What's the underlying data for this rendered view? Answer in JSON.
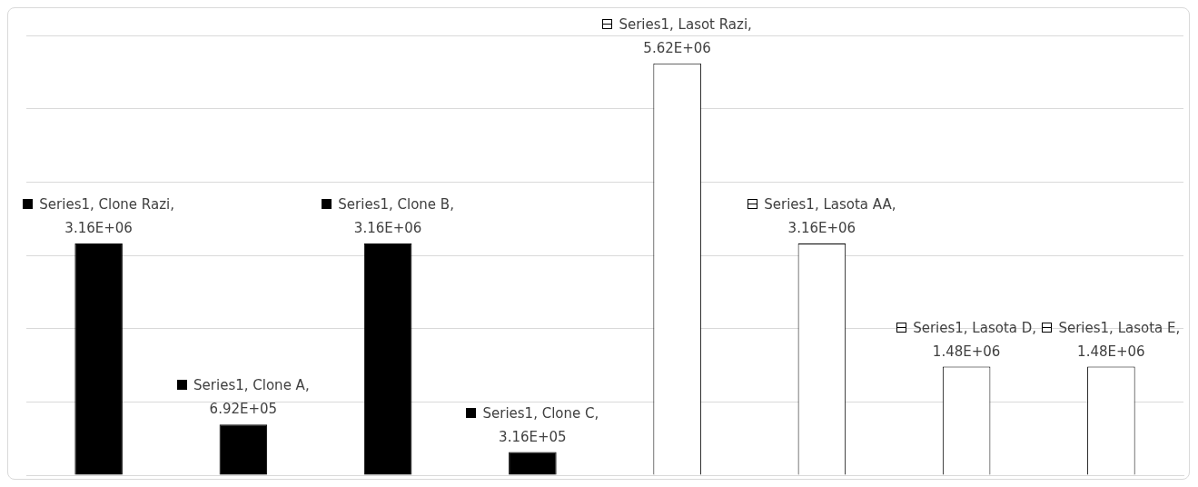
{
  "chart_data": {
    "type": "bar",
    "categories": [
      null,
      null,
      null,
      null,
      null,
      null,
      null,
      null
    ],
    "values": [
      3160000,
      692000,
      3160000,
      316000,
      5620000,
      3160000,
      1480000,
      1480000
    ],
    "colors": [
      "#000000",
      "#000000",
      "#000000",
      "#000000",
      "#ffffff",
      "#ffffff",
      "#ffffff",
      "#ffffff"
    ],
    "value_labels": [
      "3.16E+06",
      "6.92E+05",
      "3.16E+06",
      "3.16E+05",
      "5.62E+06",
      "3.16E+06",
      "1.48E+06",
      "1.48E+06"
    ],
    "annotations": [
      "Series1, Clone Razi,",
      "Series1, Clone A,",
      "Series1, Clone B,",
      "Series1, Clone C,",
      "Series1, Lasot Razi,",
      "Series1, Lasota AA,",
      "Series1, Lasota D,",
      "Series1, Lasota E,"
    ],
    "grid": "y",
    "tick_labels": false,
    "legend": false
  }
}
